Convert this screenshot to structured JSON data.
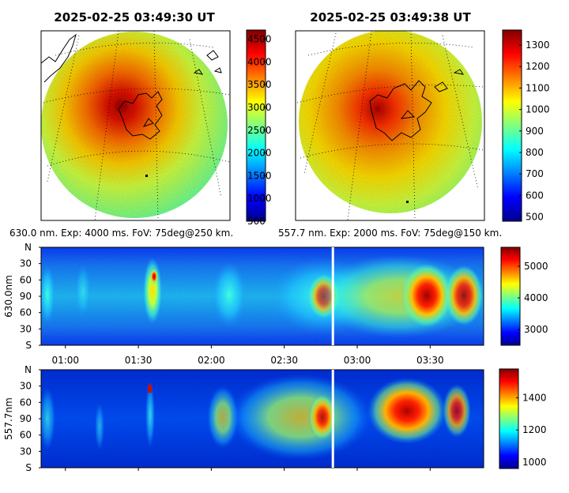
{
  "chart_data": [
    {
      "type": "heatmap",
      "title": "2025-02-25 03:49:30 UT",
      "caption": "630.0 nm. Exp: 4000 ms. FoV: 75deg@250 km.",
      "colorbar": {
        "min": 500,
        "max": 4700,
        "ticks": [
          4500,
          4000,
          3500,
          3000,
          2500,
          2000,
          1500,
          1000,
          500
        ],
        "colormap": "jet"
      }
    },
    {
      "type": "heatmap",
      "title": "2025-02-25 03:49:38 UT",
      "caption": "557.7 nm. Exp: 2000 ms. FoV: 75deg@150 km.",
      "colorbar": {
        "min": 480,
        "max": 1370,
        "ticks": [
          1300,
          1200,
          1100,
          1000,
          900,
          800,
          700,
          600,
          500
        ],
        "colormap": "jet"
      }
    },
    {
      "type": "heatmap",
      "ylabel": "630.0nm",
      "yticks": [
        "N",
        "30",
        "60",
        "90",
        "60",
        "30",
        "S"
      ],
      "xticks": [
        "01:00",
        "01:30",
        "02:00",
        "02:30",
        "03:00",
        "03:30"
      ],
      "colorbar": {
        "min": 2500,
        "max": 5600,
        "ticks": [
          5000,
          4000,
          3000
        ],
        "colormap": "jet"
      },
      "marker_time": "02:50"
    },
    {
      "type": "heatmap",
      "ylabel": "557.7nm",
      "yticks": [
        "N",
        "30",
        "60",
        "90",
        "60",
        "30",
        "S"
      ],
      "colorbar": {
        "min": 960,
        "max": 1580,
        "ticks": [
          1400,
          1200,
          1000
        ],
        "colormap": "jet"
      },
      "marker_time": "02:50"
    }
  ]
}
